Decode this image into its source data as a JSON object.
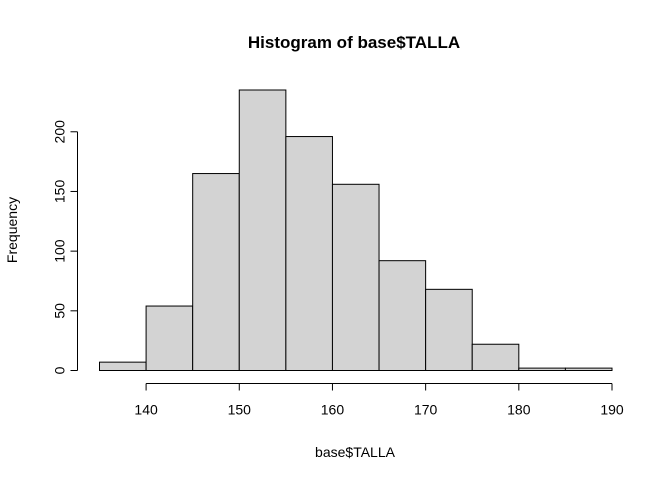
{
  "chart_data": {
    "type": "bar",
    "title": "Histogram of base$TALLA",
    "xlabel": "base$TALLA",
    "ylabel": "Frequency",
    "bins": [
      {
        "start": 135,
        "end": 140,
        "count": 7
      },
      {
        "start": 140,
        "end": 145,
        "count": 54
      },
      {
        "start": 145,
        "end": 150,
        "count": 165
      },
      {
        "start": 150,
        "end": 155,
        "count": 235
      },
      {
        "start": 155,
        "end": 160,
        "count": 196
      },
      {
        "start": 160,
        "end": 165,
        "count": 156
      },
      {
        "start": 165,
        "end": 170,
        "count": 92
      },
      {
        "start": 170,
        "end": 175,
        "count": 68
      },
      {
        "start": 175,
        "end": 180,
        "count": 22
      },
      {
        "start": 180,
        "end": 185,
        "count": 2
      },
      {
        "start": 185,
        "end": 190,
        "count": 2
      }
    ],
    "x_ticks": [
      "140",
      "150",
      "160",
      "170",
      "180",
      "190"
    ],
    "y_ticks": [
      "0",
      "50",
      "100",
      "150",
      "200"
    ],
    "xlim": [
      135,
      190
    ],
    "ylim": [
      0,
      235
    ],
    "grid": false,
    "legend": "none",
    "bar_color": "#d3d3d3",
    "edge_color": "#000000"
  }
}
